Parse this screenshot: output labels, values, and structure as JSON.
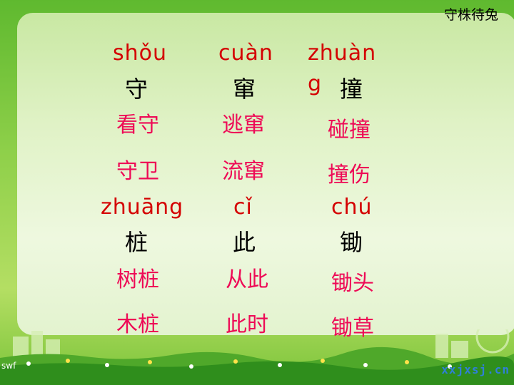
{
  "title": "守株待兔",
  "groups": [
    {
      "pinyin": "shǒu",
      "char": "守",
      "words": [
        "看守",
        "守卫"
      ]
    },
    {
      "pinyin": "cuàn",
      "char": "窜",
      "words": [
        "逃窜",
        "流窜"
      ]
    },
    {
      "pinyin": "zhuàng",
      "char": "撞",
      "words": [
        "碰撞",
        "撞伤"
      ]
    },
    {
      "pinyin": "zhuāng",
      "char": "桩",
      "words": [
        "树桩",
        "木桩"
      ]
    },
    {
      "pinyin": "cǐ",
      "char": "此",
      "words": [
        "从此",
        "此时"
      ]
    },
    {
      "pinyin": "chú",
      "char": "锄",
      "words": [
        "锄头",
        "锄草"
      ]
    }
  ],
  "pinyin_wrap": {
    "first": "zhuàn",
    "second": "g"
  },
  "logo_text": "xxjxsj.cn",
  "swf_text": "swf",
  "colors": {
    "pinyin": "#d40000",
    "word": "#ee0a56",
    "char": "#000000"
  }
}
